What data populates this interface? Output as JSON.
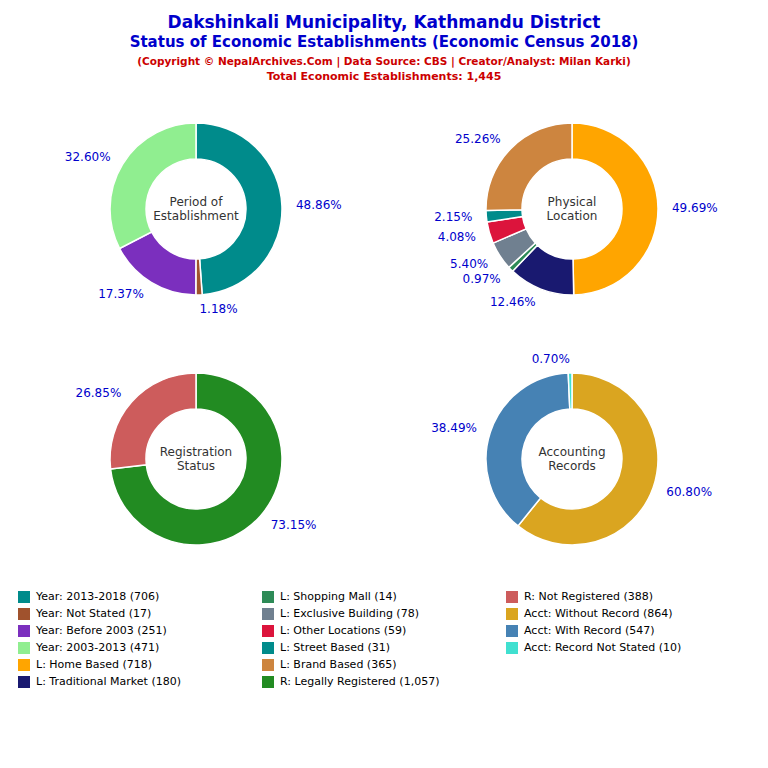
{
  "title": "Dakshinkali Municipality, Kathmandu District\nStatus of Economic Establishments (Economic Census 2018)",
  "subtitle": "(Copyright © NepalArchives.Com | Data Source: CBS | Creator/Analyst: Milan Karki)",
  "annotations": [
    "Total Economic Establishments: 1,445"
  ],
  "chart_data": [
    {
      "type": "pie",
      "title": "Period of\nEstablishment",
      "categories": [
        "Year: 2013-2018 (706)",
        "Year: Not Stated (17)",
        "Year: Before 2003 (251)",
        "Year: 2003-2013 (471)"
      ],
      "values": [
        48.86,
        1.18,
        17.37,
        32.6
      ],
      "value_labels": [
        "48.86%",
        "1.18%",
        "17.37%",
        "32.60%"
      ],
      "colors": [
        "#008B8B",
        "#A0522D",
        "#7B2FBE",
        "#90EE90"
      ],
      "data_labels": true
    },
    {
      "type": "pie",
      "title": "Physical\nLocation",
      "categories": [
        "L: Home Based (718)",
        "L: Traditional Market (180)",
        "L: Shopping Mall (14)",
        "L: Exclusive Building (78)",
        "L: Other Locations (59)",
        "L: Street Based (31)",
        "L: Brand Based (365)"
      ],
      "values": [
        49.69,
        12.46,
        0.97,
        5.4,
        4.08,
        2.15,
        25.26
      ],
      "value_labels": [
        "49.69%",
        "12.46%",
        "0.97%",
        "5.40%",
        "4.08%",
        "2.15%",
        "25.26%"
      ],
      "colors": [
        "#FFA500",
        "#191970",
        "#2E8B57",
        "#708090",
        "#DC143C",
        "#008B8B",
        "#CD853F"
      ],
      "data_labels": true
    },
    {
      "type": "pie",
      "title": "Registration\nStatus",
      "categories": [
        "R: Legally Registered (1,057)",
        "R: Not Registered (388)"
      ],
      "values": [
        73.15,
        26.85
      ],
      "value_labels": [
        "73.15%",
        "26.85%"
      ],
      "colors": [
        "#228B22",
        "#CD5C5C"
      ],
      "data_labels": true
    },
    {
      "type": "pie",
      "title": "Accounting\nRecords",
      "categories": [
        "Acct: Without Record (864)",
        "Acct: With Record (547)",
        "Acct: Record Not Stated (10)"
      ],
      "values": [
        60.8,
        38.49,
        0.7
      ],
      "value_labels": [
        "60.80%",
        "38.49%",
        "0.70%"
      ],
      "colors": [
        "#DAA520",
        "#4682B4",
        "#40E0D0"
      ],
      "data_labels": true
    }
  ]
}
